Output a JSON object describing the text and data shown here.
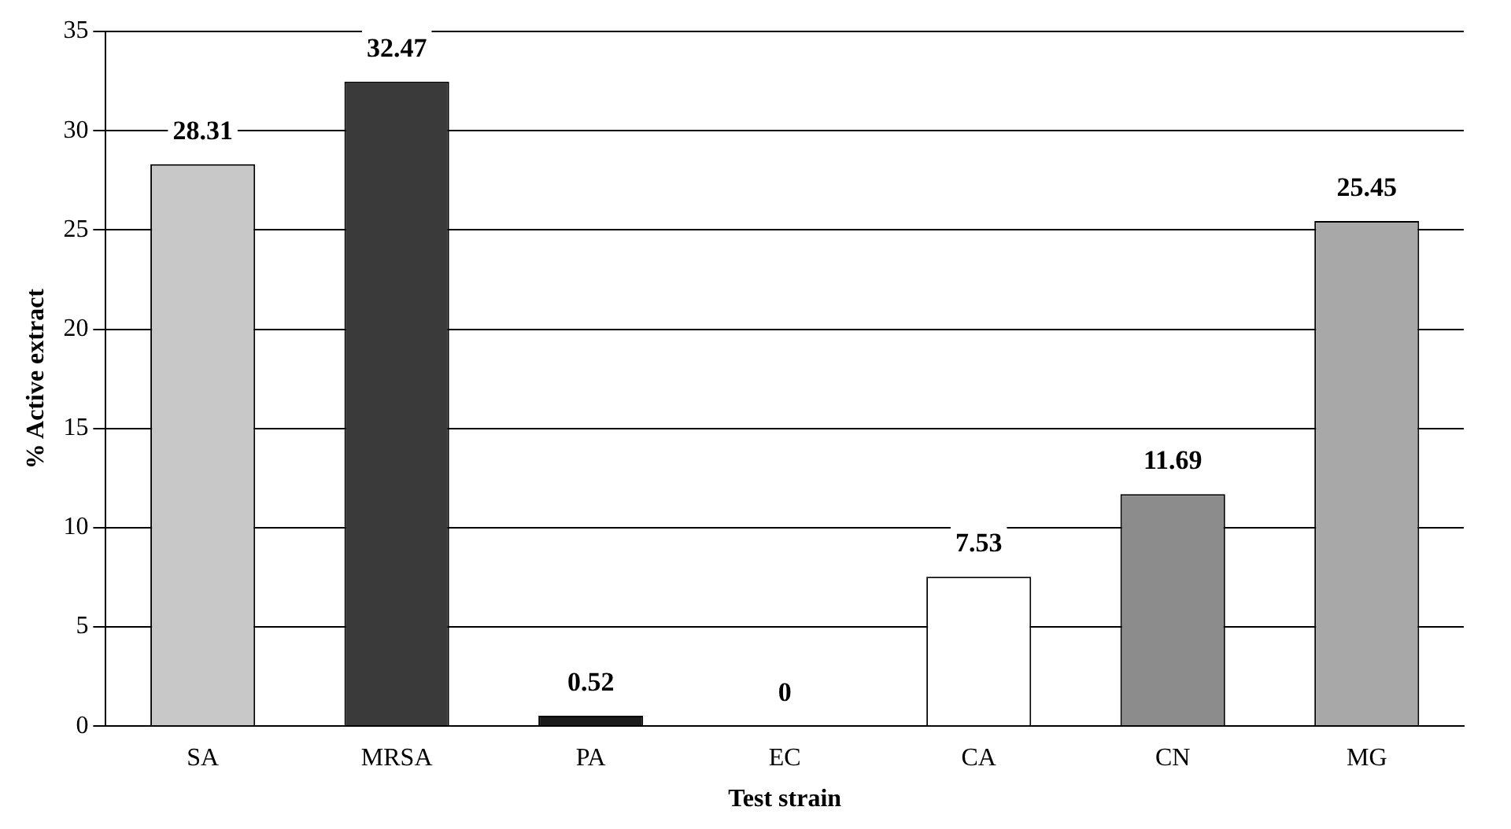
{
  "chart_data": {
    "type": "bar",
    "xlabel": "Test strain",
    "ylabel": "% Active extract",
    "categories": [
      "SA",
      "MRSA",
      "PA",
      "EC",
      "CA",
      "CN",
      "MG"
    ],
    "values": [
      28.31,
      32.47,
      0.52,
      0,
      7.53,
      11.69,
      25.45
    ],
    "colors": [
      "#c8c8c8",
      "#3a3a3a",
      "#1a1a1a",
      "#606060",
      "#ffffff",
      "#8c8c8c",
      "#a8a8a8"
    ],
    "ylim": [
      0,
      35
    ],
    "yticks": [
      0,
      5,
      10,
      15,
      20,
      25,
      30,
      35
    ],
    "grid": "y",
    "data_labels": true
  }
}
